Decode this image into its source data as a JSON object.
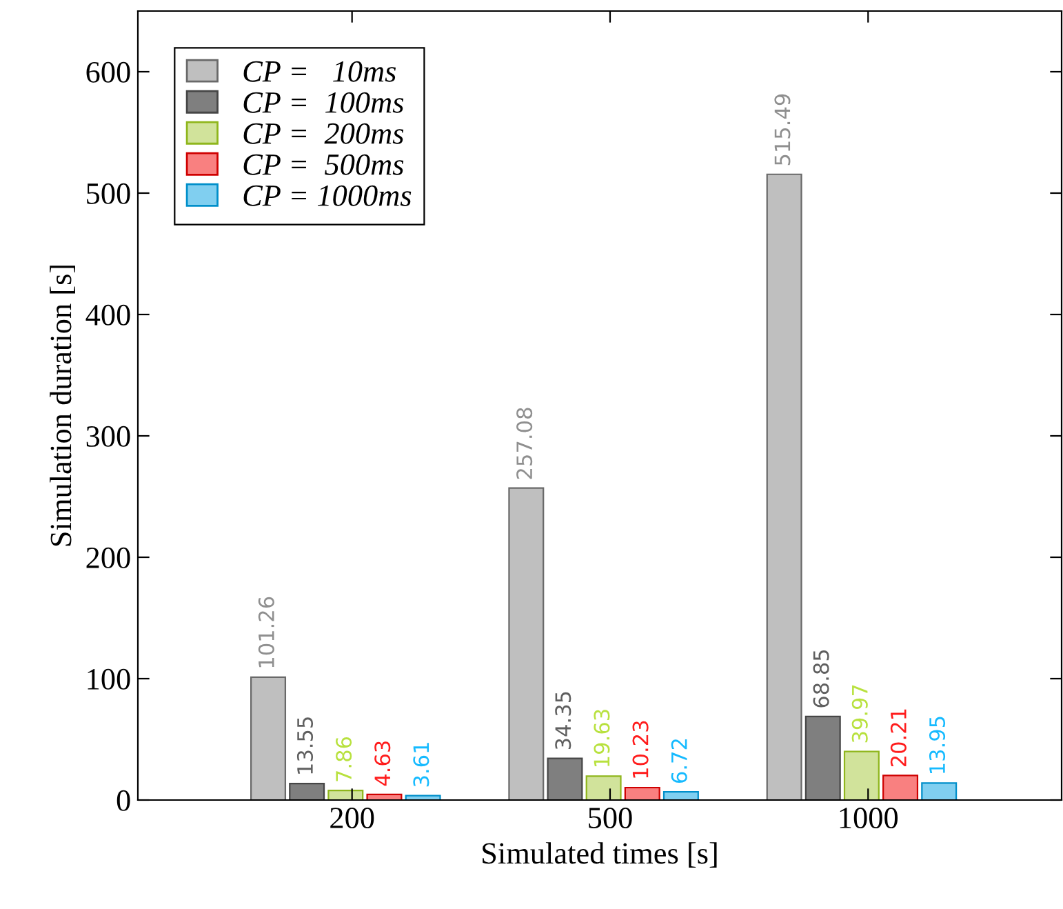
{
  "chart_data": {
    "type": "bar",
    "xlabel": "Simulated times [s]",
    "ylabel": "Simulation duration [s]",
    "categories": [
      "200",
      "500",
      "1000"
    ],
    "series": [
      {
        "name": "CP =   10ms",
        "color": "#bfbfbf",
        "values": [
          101.26,
          257.08,
          515.49
        ]
      },
      {
        "name": "CP =  100ms",
        "color": "#7f7f7f",
        "values": [
          13.55,
          34.35,
          68.85
        ]
      },
      {
        "name": "CP =  200ms",
        "color": "#d1e39b",
        "values": [
          7.86,
          19.63,
          39.97
        ]
      },
      {
        "name": "CP =  500ms",
        "color": "#f98080",
        "values": [
          4.63,
          10.23,
          20.21
        ]
      },
      {
        "name": "CP = 1000ms",
        "color": "#80cff0",
        "values": [
          3.61,
          6.72,
          13.95
        ]
      }
    ],
    "ylim": [
      0,
      650
    ],
    "yticks": [
      0,
      100,
      200,
      300,
      400,
      500,
      600
    ],
    "data_labels": true,
    "legend": "top left",
    "grid": false
  }
}
